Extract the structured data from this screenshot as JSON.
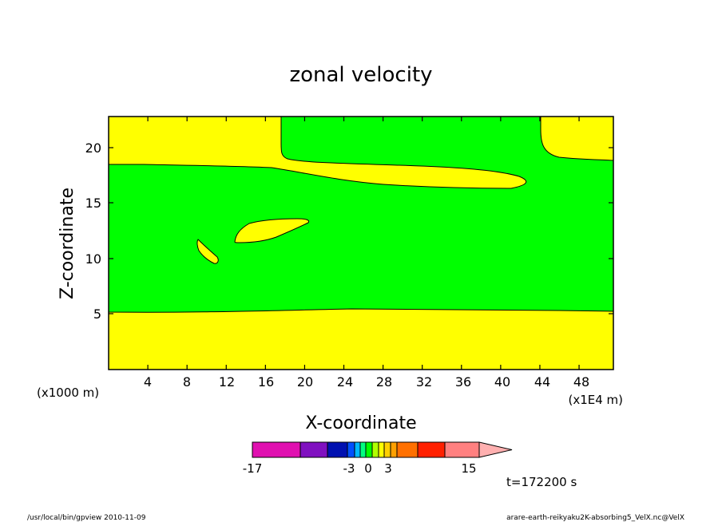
{
  "chart_data": {
    "type": "heatmap",
    "title": "zonal velocity",
    "xlabel": "X-coordinate",
    "ylabel": "Z-coordinate",
    "x_unit_left": "(x1000 m)",
    "x_unit_right": "(x1E4 m)",
    "xlim": [
      0,
      51.5
    ],
    "ylim": [
      0,
      22.8
    ],
    "x_ticks": [
      4,
      8,
      12,
      16,
      20,
      24,
      28,
      32,
      36,
      40,
      44,
      48
    ],
    "x_tick_labels": [
      "4",
      "8",
      "12",
      "16",
      "20",
      "24",
      "28",
      "32",
      "36",
      "40",
      "44",
      "48"
    ],
    "y_ticks": [
      5,
      10,
      15,
      20
    ],
    "y_tick_labels": [
      "5",
      "10",
      "15",
      "20"
    ],
    "grid": false,
    "fill_colors": {
      "background": "#ffff00",
      "band": "#00ff00"
    },
    "regions": [
      {
        "name": "lower-yellow",
        "color": "#ffff00"
      },
      {
        "name": "green-band",
        "color": "#00ff00"
      },
      {
        "name": "top-yellow-lens",
        "color": "#ffff00"
      },
      {
        "name": "mid-yellow-blob",
        "color": "#ffff00"
      },
      {
        "name": "small-yellow-blob",
        "color": "#ffff00"
      }
    ],
    "colorbar": {
      "segments": [
        {
          "color": "#e010b0"
        },
        {
          "color": "#8010c0"
        },
        {
          "color": "#0010b0"
        },
        {
          "color": "#0050ff"
        },
        {
          "color": "#00b8ff"
        },
        {
          "color": "#00ff80"
        },
        {
          "color": "#00ff00"
        },
        {
          "color": "#b0ff00"
        },
        {
          "color": "#ffff00"
        },
        {
          "color": "#ffd000"
        },
        {
          "color": "#ffa000"
        },
        {
          "color": "#ff7000"
        },
        {
          "color": "#ff2000"
        },
        {
          "color": "#ff8080"
        }
      ],
      "overflow_color": "#ffb0b0",
      "labels": [
        "-17",
        "-3",
        "0",
        "3",
        "15"
      ]
    },
    "time_label": "t=172200 s"
  },
  "footer": {
    "left": "/usr/local/bin/gpview  2010-11-09",
    "right": "arare-earth-reikyaku2K-absorbing5_VelX.nc@VelX"
  }
}
